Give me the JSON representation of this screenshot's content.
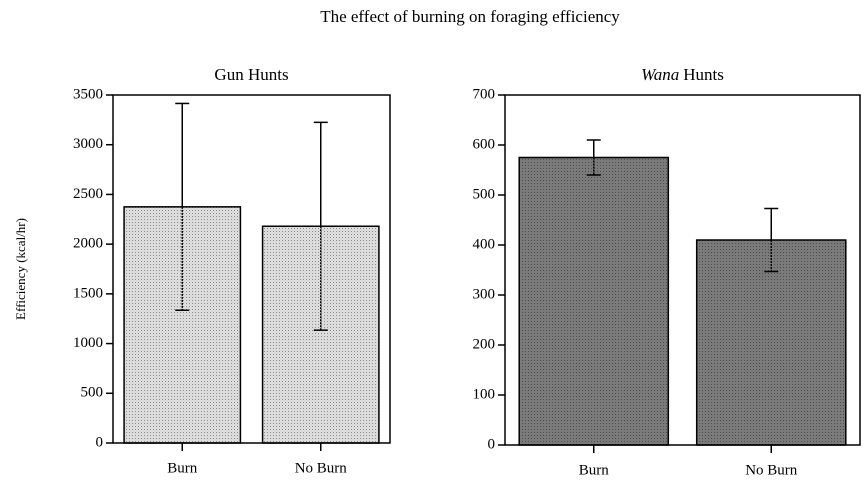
{
  "title": "The effect of burning on foraging efficiency",
  "chart_data": [
    {
      "type": "bar",
      "title": [
        "Gun Hunts"
      ],
      "ylabel": "Efficiency (kcal/hr)",
      "categories": [
        "Burn",
        "No Burn"
      ],
      "values": [
        2375,
        2180
      ],
      "errors": [
        1040,
        1045
      ],
      "color": "#dcdcdc",
      "ylim": [
        0,
        3500
      ],
      "yticks": [
        0,
        500,
        1000,
        1500,
        2000,
        2500,
        3000,
        3500
      ]
    },
    {
      "type": "bar",
      "title": [
        "Wana",
        "Hunts"
      ],
      "italic": [
        true,
        false
      ],
      "categories": [
        "Burn",
        "No Burn"
      ],
      "values": [
        575,
        410
      ],
      "errors": [
        35,
        63
      ],
      "color": "#7a7a7a",
      "ylim": [
        0,
        700
      ],
      "yticks": [
        0,
        100,
        200,
        300,
        400,
        500,
        600,
        700
      ]
    }
  ]
}
